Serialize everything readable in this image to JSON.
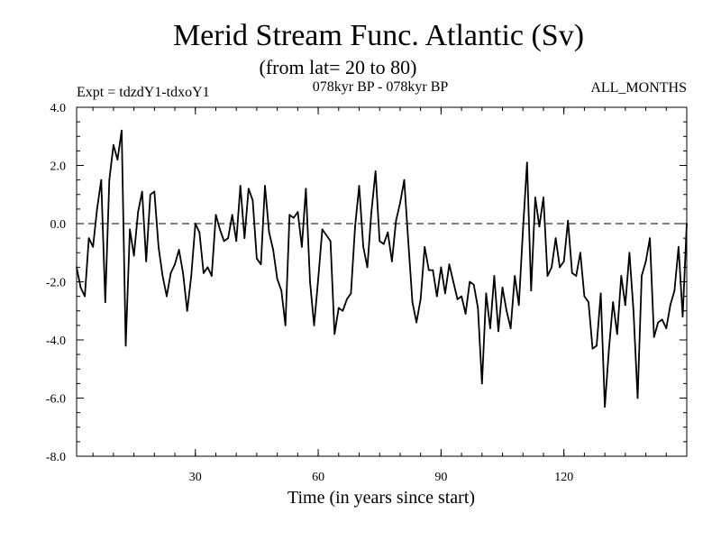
{
  "chart_data": {
    "type": "line",
    "title": "Merid Stream Func. Atlantic (Sv)",
    "subtitle": "(from lat= 20 to 80)",
    "expt_label": "Expt = tdzdY1-tdxoY1",
    "period_label": "078kyr BP - 078kyr BP",
    "months_label": "ALL_MONTHS",
    "xlabel": "Time (in years since start)",
    "ylabel": "",
    "xlim": [
      1,
      150
    ],
    "ylim": [
      -8,
      4
    ],
    "x_ticks": [
      30,
      60,
      90,
      120
    ],
    "x_tick_labels": [
      "30",
      "60",
      "90",
      "120"
    ],
    "y_ticks": [
      4,
      2,
      0,
      -2,
      -4,
      -6,
      -8
    ],
    "y_tick_labels": [
      "4.0",
      "2.0",
      "0.0",
      "-2.0",
      "-4.0",
      "-6.0",
      "-8.0"
    ],
    "reference_line": 0,
    "series": [
      {
        "name": "Merid Stream Func. Atlantic",
        "values": [
          -1.5,
          -2.2,
          -2.5,
          -0.5,
          -0.8,
          0.5,
          1.5,
          -2.7,
          1.5,
          2.7,
          2.2,
          3.2,
          -4.2,
          -0.2,
          -1.1,
          0.4,
          1.1,
          -1.3,
          1.0,
          1.1,
          -0.8,
          -1.8,
          -2.5,
          -1.7,
          -1.4,
          -0.9,
          -1.7,
          -3.0,
          -1.8,
          0.0,
          -0.3,
          -1.7,
          -1.5,
          -1.8,
          0.3,
          -0.2,
          -0.6,
          -0.5,
          0.3,
          -0.6,
          1.3,
          -0.5,
          1.2,
          0.8,
          -1.2,
          -1.4,
          1.3,
          -0.3,
          -0.9,
          -1.9,
          -2.3,
          -3.5,
          0.3,
          0.2,
          0.4,
          -0.8,
          1.2,
          -2.0,
          -3.5,
          -1.9,
          -0.2,
          -0.4,
          -0.6,
          -3.8,
          -2.9,
          -3.0,
          -2.6,
          -2.4,
          -0.1,
          1.3,
          -0.8,
          -1.5,
          0.4,
          1.8,
          -0.6,
          -0.7,
          -0.3,
          -1.3,
          0.1,
          0.7,
          1.5,
          -0.6,
          -2.7,
          -3.4,
          -2.6,
          -0.8,
          -1.6,
          -1.6,
          -2.5,
          -1.5,
          -2.4,
          -1.4,
          -2.0,
          -2.6,
          -2.5,
          -3.1,
          -2.0,
          -2.1,
          -2.9,
          -5.5,
          -2.4,
          -3.6,
          -1.8,
          -3.7,
          -2.2,
          -3.0,
          -3.6,
          -1.8,
          -2.8,
          -0.2,
          2.1,
          -2.3,
          0.9,
          -0.1,
          0.9,
          -1.8,
          -1.5,
          -0.5,
          -1.5,
          -1.3,
          0.1,
          -1.7,
          -1.8,
          -1.0,
          -2.5,
          -2.7,
          -4.3,
          -4.2,
          -2.4,
          -6.3,
          -4.3,
          -2.7,
          -3.8,
          -1.8,
          -2.8,
          -1.0,
          -3.0,
          -6.0,
          -1.8,
          -1.3,
          -0.5,
          -3.9,
          -3.4,
          -3.3,
          -3.6,
          -2.8,
          -2.3,
          -0.8,
          -3.2,
          0.0
        ]
      }
    ]
  }
}
